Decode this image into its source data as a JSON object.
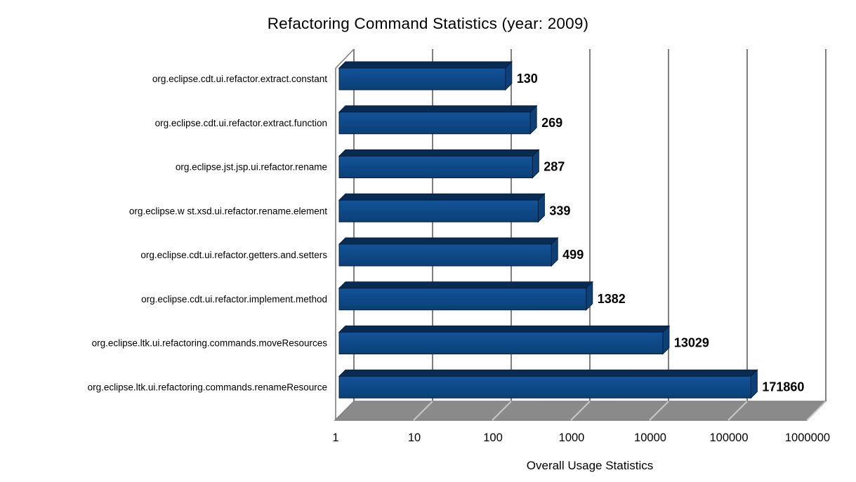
{
  "chart_data": {
    "type": "bar",
    "orientation": "horizontal",
    "style": "3d",
    "title": "Refactoring Command Statistics (year: 2009)",
    "xlabel": "Overall Usage Statistics",
    "ylabel": "",
    "x_scale": "log",
    "xlim": [
      1,
      1000000
    ],
    "x_tick_labels": [
      "1",
      "10",
      "100",
      "1000",
      "10000",
      "100000",
      "1000000"
    ],
    "grid": true,
    "legend": false,
    "categories": [
      "org.eclipse.cdt.ui.refactor.extract.constant",
      "org.eclipse.cdt.ui.refactor.extract.function",
      "org.eclipse.jst.jsp.ui.refactor.rename",
      "org.eclipse.w st.xsd.ui.refactor.rename.element",
      "org.eclipse.cdt.ui.refactor.getters.and.setters",
      "org.eclipse.cdt.ui.refactor.implement.method",
      "org.eclipse.ltk.ui.refactoring.commands.moveResources",
      "org.eclipse.ltk.ui.refactoring.commands.renameResource"
    ],
    "values": [
      130,
      269,
      287,
      339,
      499,
      1382,
      13029,
      171860
    ],
    "data_labels": [
      "130",
      "269",
      "287",
      "339",
      "499",
      "1382",
      "13029",
      "171860"
    ],
    "colors": {
      "bar_front_top": "#135399",
      "bar_front_bottom": "#0A4076",
      "bar_top_face": "#092B52",
      "bar_end_face": "#0E4078",
      "bar_outline": "#051F3D",
      "wall_line": "#7F7F7F",
      "floor": "#8A8A8A",
      "floor_gridline": "#C8C8C8",
      "text": "#000000",
      "background": "#FFFFFF"
    }
  }
}
